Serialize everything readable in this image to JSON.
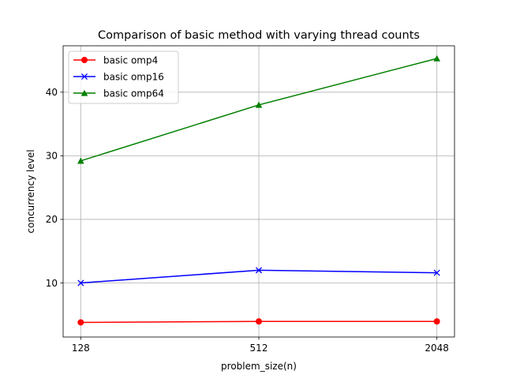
{
  "chart_data": {
    "type": "line",
    "title": "Comparison of basic method with varying thread counts",
    "xlabel": "problem_size(n)",
    "ylabel": "concurrency level",
    "categories": [
      "128",
      "512",
      "2048"
    ],
    "ylim": [
      1.5,
      47.3
    ],
    "y_ticks": [
      "10",
      "20",
      "30",
      "40"
    ],
    "grid": true,
    "legend_position": "top-left",
    "series": [
      {
        "name": "basic omp4",
        "color": "#ff0000",
        "marker": "circle",
        "values": [
          3.8,
          3.95,
          3.95
        ]
      },
      {
        "name": "basic omp16",
        "color": "#0000ff",
        "marker": "x",
        "values": [
          10.0,
          12.0,
          11.6
        ]
      },
      {
        "name": "basic omp64",
        "color": "#008000",
        "marker": "triangle",
        "values": [
          29.2,
          38.0,
          45.3
        ]
      }
    ]
  }
}
